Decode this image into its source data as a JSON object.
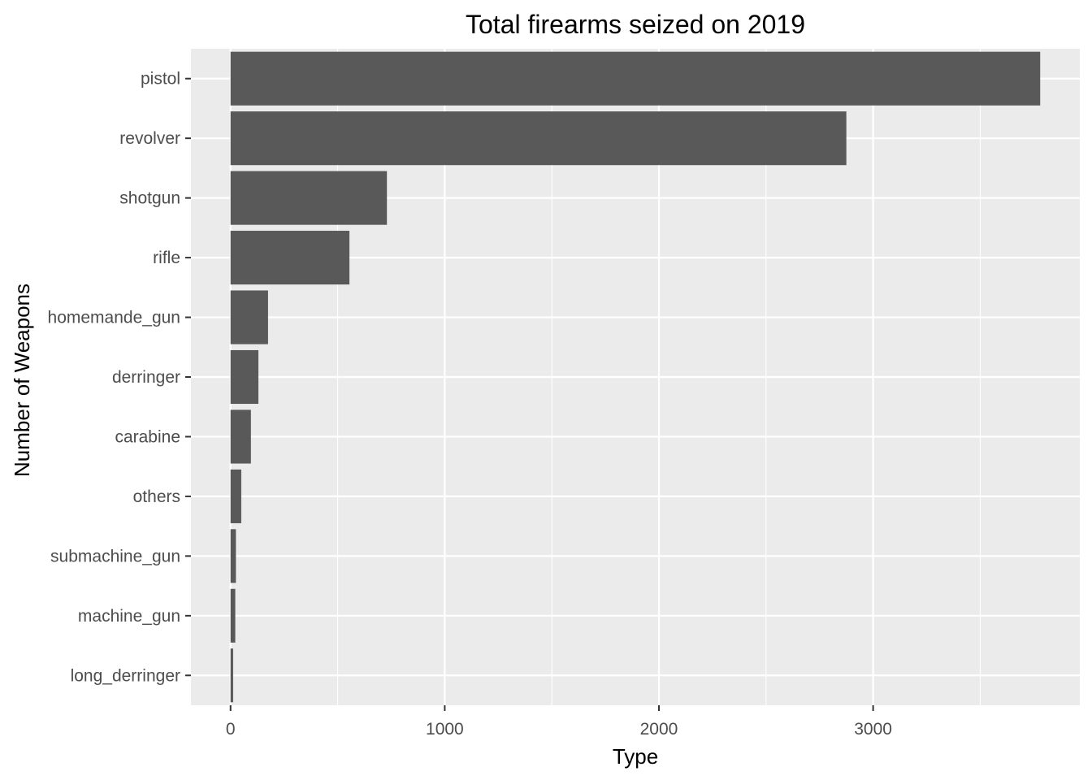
{
  "chart_data": {
    "type": "bar",
    "orientation": "horizontal",
    "title": "Total firearms seized on 2019",
    "xlabel": "Type",
    "ylabel": "Number of Weapons",
    "categories": [
      "pistol",
      "revolver",
      "shotgun",
      "rifle",
      "homemande_gun",
      "derringer",
      "carabine",
      "others",
      "submachine_gun",
      "machine_gun",
      "long_derringer"
    ],
    "values": [
      3780,
      2875,
      730,
      555,
      175,
      130,
      95,
      50,
      25,
      22,
      12
    ],
    "xticks": [
      0,
      1000,
      2000,
      3000
    ],
    "xlim": [
      -185,
      3965
    ],
    "grid": true,
    "colors": {
      "bar": "#595959",
      "panel": "#ebebeb",
      "grid": "#ffffff",
      "tick": "#333333"
    }
  }
}
